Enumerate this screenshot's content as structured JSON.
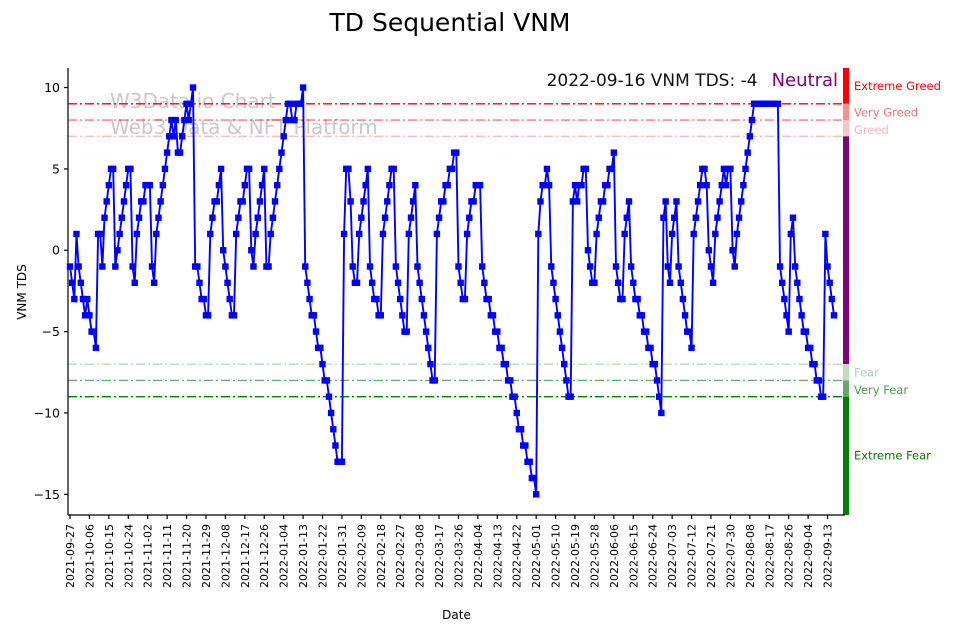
{
  "chart": {
    "title": "TD Sequential VNM"
  },
  "watermark": {
    "line1": "W3Data.io Chart",
    "line2": "Web3 Data & NFT Platform"
  },
  "annotation": {
    "text": "2022-09-16 VNM TDS: -4",
    "status": "Neutral",
    "status_color": "#800080"
  },
  "axes": {
    "xlabel": "Date",
    "ylabel": "VNM TDS",
    "yticks": [
      10,
      5,
      0,
      -5,
      -10,
      -15
    ],
    "ylim": [
      -16.27,
      11.2
    ],
    "grid": false
  },
  "thresholds": [
    {
      "value": 9,
      "color": "#ff0000",
      "opacity": 1.0
    },
    {
      "value": 8,
      "color": "#ff0000",
      "opacity": 0.55
    },
    {
      "value": 7,
      "color": "#ff0000",
      "opacity": 0.28
    },
    {
      "value": -7,
      "color": "#008000",
      "opacity": 0.28
    },
    {
      "value": -8,
      "color": "#008000",
      "opacity": 0.6
    },
    {
      "value": -9,
      "color": "#008000",
      "opacity": 1.0
    }
  ],
  "bands": [
    {
      "label": "Extreme Greed",
      "from": 9,
      "to": 11.2,
      "color": "#ff0000",
      "label_color": "#ff0000",
      "label_at": 10.1
    },
    {
      "label": "Very Greed",
      "from": 8,
      "to": 9,
      "color": "#f69090",
      "label_color": "#f07272",
      "label_at": 8.45
    },
    {
      "label": "Greed",
      "from": 7,
      "to": 8,
      "color": "#fac6c6",
      "label_color": "#f6b6b6",
      "label_at": 7.4
    },
    {
      "label": "Neutral",
      "from": -7,
      "to": 7,
      "color": "#800080",
      "label_color": "#800080",
      "label_at": null
    },
    {
      "label": "Fear",
      "from": -8,
      "to": -7,
      "color": "#c0ddc0",
      "label_color": "#aed2ae",
      "label_at": -7.5
    },
    {
      "label": "Very Fear",
      "from": -9,
      "to": -8,
      "color": "#6aa86a",
      "label_color": "#4f9a4f",
      "label_at": -8.6
    },
    {
      "label": "Extreme Fear",
      "from": -16.27,
      "to": -9,
      "color": "#008000",
      "label_color": "#008000",
      "label_at": -12.6
    }
  ],
  "chart_data": {
    "type": "line",
    "series_name": "VNM TDS",
    "color": "#0000ff",
    "marker": "square",
    "start_date": "2021-09-27",
    "end_date": "2022-09-16",
    "tick_every": 9,
    "x_tick_labels": [
      "2021-09-27",
      "2021-10-06",
      "2021-10-15",
      "2021-10-24",
      "2021-11-02",
      "2021-11-11",
      "2021-11-20",
      "2021-11-29",
      "2021-12-08",
      "2021-12-17",
      "2021-12-26",
      "2022-01-04",
      "2022-01-13",
      "2022-01-22",
      "2022-01-31",
      "2022-02-09",
      "2022-02-18",
      "2022-02-27",
      "2022-03-08",
      "2022-03-17",
      "2022-03-26",
      "2022-04-04",
      "2022-04-13",
      "2022-04-22",
      "2022-05-01",
      "2022-05-10",
      "2022-05-19",
      "2022-05-28",
      "2022-06-06",
      "2022-06-15",
      "2022-06-24",
      "2022-07-03",
      "2022-07-12",
      "2022-07-21",
      "2022-07-30",
      "2022-08-08",
      "2022-08-17",
      "2022-08-26",
      "2022-09-04",
      "2022-09-13"
    ],
    "values": [
      -1,
      -2,
      -3,
      1,
      -1,
      -2,
      -3,
      -4,
      -3,
      -4,
      -5,
      -5,
      -6,
      1,
      1,
      -1,
      2,
      3,
      4,
      5,
      5,
      -1,
      0,
      1,
      2,
      3,
      4,
      5,
      5,
      -1,
      -2,
      1,
      2,
      3,
      3,
      4,
      4,
      4,
      -1,
      -2,
      1,
      2,
      3,
      4,
      5,
      6,
      7,
      8,
      7,
      8,
      6,
      6,
      7,
      8,
      9,
      8,
      9,
      10,
      -1,
      -1,
      -2,
      -3,
      -3,
      -4,
      -4,
      1,
      2,
      3,
      3,
      4,
      5,
      0,
      -1,
      -2,
      -3,
      -4,
      -4,
      1,
      2,
      3,
      3,
      4,
      5,
      5,
      0,
      -1,
      1,
      2,
      3,
      4,
      5,
      -1,
      -1,
      1,
      2,
      3,
      4,
      5,
      6,
      7,
      8,
      9,
      9,
      8,
      8,
      9,
      9,
      9,
      10,
      -1,
      -2,
      -3,
      -4,
      -4,
      -5,
      -6,
      -6,
      -7,
      -8,
      -8,
      -9,
      -10,
      -11,
      -12,
      -13,
      -13,
      -13,
      1,
      5,
      5,
      3,
      -1,
      -2,
      -2,
      1,
      2,
      3,
      4,
      5,
      -1,
      -2,
      -3,
      -3,
      -4,
      -4,
      1,
      2,
      3,
      4,
      5,
      5,
      -1,
      -2,
      -3,
      -4,
      -5,
      -5,
      1,
      2,
      3,
      4,
      -1,
      -2,
      -3,
      -4,
      -5,
      -6,
      -7,
      -8,
      -8,
      1,
      2,
      3,
      3,
      4,
      4,
      5,
      5,
      6,
      6,
      -1,
      -2,
      -3,
      -3,
      1,
      2,
      3,
      3,
      4,
      4,
      4,
      -1,
      -2,
      -3,
      -3,
      -4,
      -4,
      -5,
      -5,
      -6,
      -6,
      -7,
      -7,
      -8,
      -8,
      -9,
      -9,
      -10,
      -11,
      -11,
      -12,
      -12,
      -13,
      -13,
      -14,
      -14,
      -15,
      1,
      3,
      4,
      4,
      5,
      4,
      -1,
      -2,
      -3,
      -4,
      -5,
      -6,
      -7,
      -8,
      -9,
      -9,
      3,
      4,
      3,
      4,
      4,
      5,
      5,
      0,
      -1,
      -2,
      -2,
      1,
      2,
      3,
      3,
      4,
      4,
      5,
      5,
      6,
      -1,
      -2,
      -3,
      -3,
      1,
      2,
      3,
      -1,
      -2,
      -3,
      -3,
      -4,
      -4,
      -5,
      -5,
      -6,
      -6,
      -7,
      -7,
      -8,
      -9,
      -10,
      2,
      3,
      -1,
      -2,
      1,
      2,
      3,
      -1,
      -2,
      -3,
      -4,
      -5,
      -5,
      -6,
      1,
      2,
      3,
      4,
      5,
      5,
      4,
      0,
      -1,
      -2,
      1,
      2,
      3,
      4,
      5,
      4,
      5,
      5,
      0,
      -1,
      1,
      2,
      3,
      4,
      5,
      6,
      7,
      8,
      9,
      9,
      9,
      9,
      9,
      9,
      9,
      9,
      9,
      9,
      9,
      9,
      -1,
      -2,
      -3,
      -4,
      -5,
      1,
      2,
      -1,
      -2,
      -3,
      -4,
      -5,
      -5,
      -6,
      -6,
      -7,
      -7,
      -8,
      -8,
      -9,
      -9,
      1,
      -1,
      -2,
      -3,
      -4
    ]
  }
}
